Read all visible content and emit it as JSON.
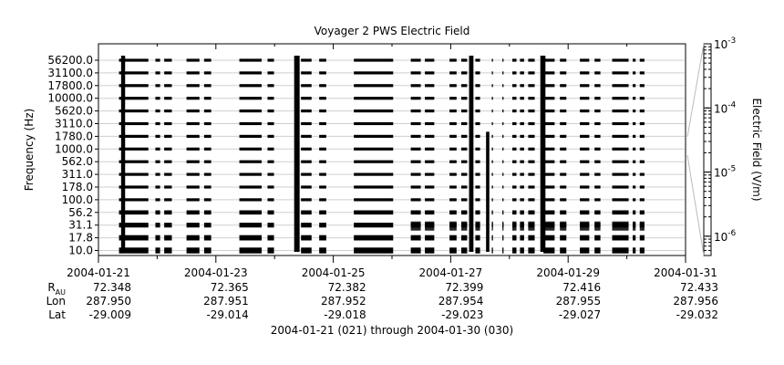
{
  "chart_data": {
    "type": "heatmap",
    "title": "Voyager 2 PWS Electric Field",
    "ylabel": "Frequency (Hz)",
    "colorbar_label": "Electric Field (V/m)",
    "y_channels": [
      "56200.0",
      "31100.0",
      "17800.0",
      "10000.0",
      "5620.0",
      "3110.0",
      "1780.0",
      "1000.0",
      "562.0",
      "311.0",
      "178.0",
      "100.0",
      "56.2",
      "31.1",
      "17.8",
      "10.0"
    ],
    "x_ticks": [
      "2004-01-21",
      "2004-01-23",
      "2004-01-25",
      "2004-01-27",
      "2004-01-29",
      "2004-01-31"
    ],
    "x_range_days": [
      0,
      10
    ],
    "colorbar_ticks": [
      {
        "label": "10",
        "exp": "-3",
        "value": 0.001
      },
      {
        "label": "10",
        "exp": "-4",
        "value": 0.0001
      },
      {
        "label": "10",
        "exp": "-5",
        "value": 1e-05
      },
      {
        "label": "10",
        "exp": "-6",
        "value": 1e-06
      }
    ],
    "colorbar_range": [
      5e-07,
      0.001
    ],
    "colorbar_scale": "log",
    "ephemeris": {
      "rows": [
        {
          "label": "R",
          "sub": "AU",
          "values": [
            "72.348",
            "72.365",
            "72.382",
            "72.399",
            "72.416",
            "72.433"
          ]
        },
        {
          "label": "Lon",
          "sub": "",
          "values": [
            "287.950",
            "287.951",
            "287.952",
            "287.954",
            "287.955",
            "287.956"
          ]
        },
        {
          "label": "Lat",
          "sub": "",
          "values": [
            "-29.009",
            "-29.014",
            "-29.018",
            "-29.023",
            "-29.027",
            "-29.032"
          ]
        }
      ]
    },
    "date_range_caption": "2004-01-21 (021) through 2004-01-30 (030)",
    "data_segments_days": [
      [
        0.35,
        0.85
      ],
      [
        0.97,
        1.05
      ],
      [
        1.12,
        1.25
      ],
      [
        1.5,
        1.72
      ],
      [
        1.8,
        1.92
      ],
      [
        2.4,
        2.78
      ],
      [
        2.88,
        2.99
      ],
      [
        3.45,
        3.63
      ],
      [
        3.76,
        3.88
      ],
      [
        4.35,
        5.02
      ],
      [
        5.32,
        5.49
      ],
      [
        5.56,
        5.72
      ],
      [
        5.98,
        6.1
      ],
      [
        6.18,
        6.28
      ],
      [
        6.42,
        6.5
      ],
      [
        6.7,
        6.72
      ],
      [
        6.88,
        6.9
      ],
      [
        7.05,
        7.12
      ],
      [
        7.18,
        7.25
      ],
      [
        7.32,
        7.43
      ],
      [
        7.58,
        7.77
      ],
      [
        7.86,
        7.97
      ],
      [
        8.2,
        8.36
      ],
      [
        8.45,
        8.55
      ],
      [
        8.75,
        9.03
      ],
      [
        9.1,
        9.15
      ],
      [
        9.22,
        9.3
      ]
    ],
    "bursts_days": [
      {
        "day": 0.42,
        "top_channel": 0,
        "strength": 0.6
      },
      {
        "day": 3.38,
        "top_channel": 0,
        "strength": 1.0
      },
      {
        "day": 6.35,
        "top_channel": 0,
        "strength": 0.7
      },
      {
        "day": 6.63,
        "top_channel": 6,
        "strength": 0.4
      },
      {
        "day": 7.57,
        "top_channel": 0,
        "strength": 0.9
      }
    ]
  }
}
